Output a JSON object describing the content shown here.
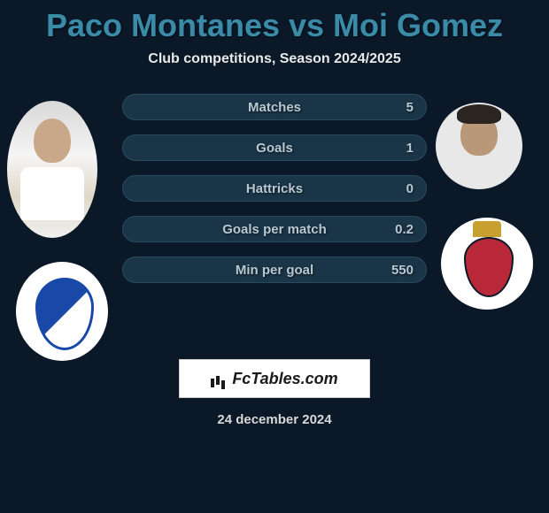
{
  "title": "Paco Montanes vs Moi Gomez",
  "subtitle": "Club competitions, Season 2024/2025",
  "date": "24 december 2024",
  "brand": "FcTables.com",
  "colors": {
    "background": "#0a1828",
    "title_color": "#3a8ba8",
    "stat_row_bg": "#1a3548",
    "stat_text": "#b8c8d0"
  },
  "player_left": {
    "name": "Paco Montanes"
  },
  "player_right": {
    "name": "Moi Gomez"
  },
  "stats": {
    "matches": {
      "label": "Matches",
      "value": "5"
    },
    "goals": {
      "label": "Goals",
      "value": "1"
    },
    "hattricks": {
      "label": "Hattricks",
      "value": "0"
    },
    "goals_per_match": {
      "label": "Goals per match",
      "value": "0.2"
    },
    "min_per_goal": {
      "label": "Min per goal",
      "value": "550"
    }
  }
}
